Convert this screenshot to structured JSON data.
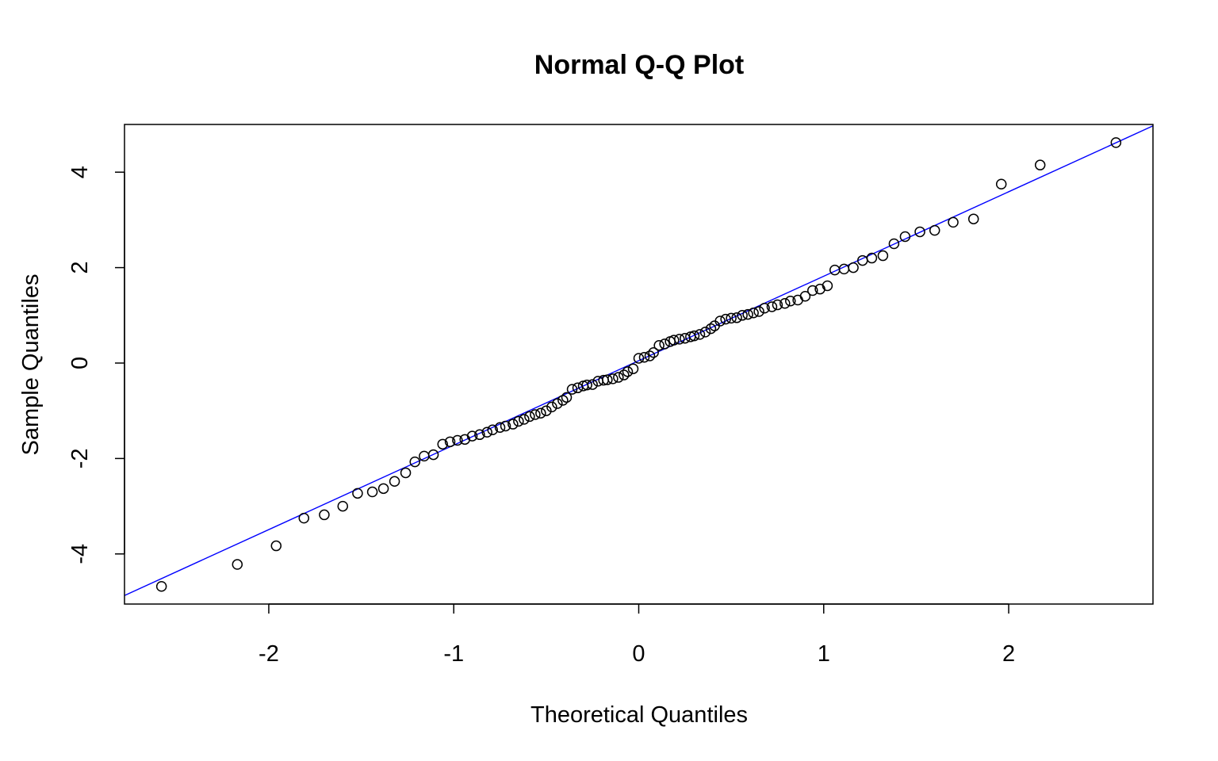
{
  "chart_data": {
    "type": "scatter",
    "title": "Normal Q-Q Plot",
    "xlabel": "Theoretical Quantiles",
    "ylabel": "Sample Quantiles",
    "xlim": [
      -2.78,
      2.78
    ],
    "ylim": [
      -5.05,
      5.0
    ],
    "xticks": [
      -2,
      -1,
      0,
      1,
      2
    ],
    "yticks": [
      -4,
      -2,
      0,
      2,
      4
    ],
    "grid": false,
    "legend": "none",
    "colors": {
      "points": "#000000",
      "line": "#0000ff",
      "frame": "#000000"
    },
    "reference_line": {
      "intercept": 0.05,
      "slope": 1.77
    },
    "points": [
      [
        -2.58,
        -4.68
      ],
      [
        -2.17,
        -4.22
      ],
      [
        -1.96,
        -3.83
      ],
      [
        -1.81,
        -3.25
      ],
      [
        -1.7,
        -3.18
      ],
      [
        -1.6,
        -3.0
      ],
      [
        -1.52,
        -2.73
      ],
      [
        -1.44,
        -2.7
      ],
      [
        -1.38,
        -2.63
      ],
      [
        -1.32,
        -2.48
      ],
      [
        -1.26,
        -2.3
      ],
      [
        -1.21,
        -2.07
      ],
      [
        -1.16,
        -1.95
      ],
      [
        -1.11,
        -1.92
      ],
      [
        -1.06,
        -1.7
      ],
      [
        -1.02,
        -1.65
      ],
      [
        -0.98,
        -1.62
      ],
      [
        -0.94,
        -1.6
      ],
      [
        -0.9,
        -1.53
      ],
      [
        -0.86,
        -1.5
      ],
      [
        -0.82,
        -1.45
      ],
      [
        -0.79,
        -1.4
      ],
      [
        -0.75,
        -1.35
      ],
      [
        -0.72,
        -1.32
      ],
      [
        -0.68,
        -1.28
      ],
      [
        -0.65,
        -1.22
      ],
      [
        -0.62,
        -1.18
      ],
      [
        -0.59,
        -1.12
      ],
      [
        -0.56,
        -1.08
      ],
      [
        -0.53,
        -1.05
      ],
      [
        -0.5,
        -1.0
      ],
      [
        -0.47,
        -0.92
      ],
      [
        -0.44,
        -0.85
      ],
      [
        -0.41,
        -0.78
      ],
      [
        -0.39,
        -0.72
      ],
      [
        -0.36,
        -0.55
      ],
      [
        -0.33,
        -0.52
      ],
      [
        -0.3,
        -0.48
      ],
      [
        -0.28,
        -0.46
      ],
      [
        -0.25,
        -0.45
      ],
      [
        -0.22,
        -0.38
      ],
      [
        -0.19,
        -0.36
      ],
      [
        -0.17,
        -0.35
      ],
      [
        -0.14,
        -0.33
      ],
      [
        -0.11,
        -0.3
      ],
      [
        -0.08,
        -0.25
      ],
      [
        -0.06,
        -0.18
      ],
      [
        -0.03,
        -0.12
      ],
      [
        0.0,
        0.1
      ],
      [
        0.03,
        0.12
      ],
      [
        0.06,
        0.15
      ],
      [
        0.08,
        0.22
      ],
      [
        0.11,
        0.37
      ],
      [
        0.14,
        0.4
      ],
      [
        0.17,
        0.45
      ],
      [
        0.19,
        0.48
      ],
      [
        0.22,
        0.5
      ],
      [
        0.25,
        0.52
      ],
      [
        0.28,
        0.55
      ],
      [
        0.3,
        0.57
      ],
      [
        0.33,
        0.6
      ],
      [
        0.36,
        0.65
      ],
      [
        0.39,
        0.72
      ],
      [
        0.41,
        0.78
      ],
      [
        0.44,
        0.88
      ],
      [
        0.47,
        0.92
      ],
      [
        0.5,
        0.94
      ],
      [
        0.53,
        0.95
      ],
      [
        0.56,
        1.0
      ],
      [
        0.59,
        1.02
      ],
      [
        0.62,
        1.05
      ],
      [
        0.65,
        1.08
      ],
      [
        0.68,
        1.15
      ],
      [
        0.72,
        1.18
      ],
      [
        0.75,
        1.22
      ],
      [
        0.79,
        1.25
      ],
      [
        0.82,
        1.3
      ],
      [
        0.86,
        1.32
      ],
      [
        0.9,
        1.4
      ],
      [
        0.94,
        1.52
      ],
      [
        0.98,
        1.55
      ],
      [
        1.02,
        1.62
      ],
      [
        1.06,
        1.95
      ],
      [
        1.11,
        1.97
      ],
      [
        1.16,
        2.0
      ],
      [
        1.21,
        2.15
      ],
      [
        1.26,
        2.2
      ],
      [
        1.32,
        2.25
      ],
      [
        1.38,
        2.5
      ],
      [
        1.44,
        2.65
      ],
      [
        1.52,
        2.75
      ],
      [
        1.6,
        2.78
      ],
      [
        1.7,
        2.95
      ],
      [
        1.81,
        3.02
      ],
      [
        1.96,
        3.75
      ],
      [
        2.17,
        4.15
      ],
      [
        2.58,
        4.62
      ]
    ]
  }
}
